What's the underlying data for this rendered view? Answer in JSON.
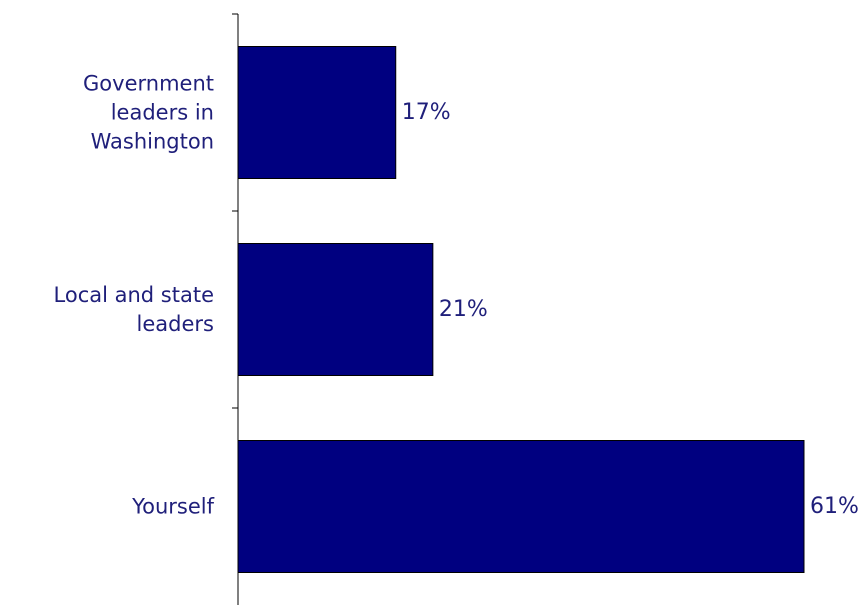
{
  "chart_data": {
    "type": "bar",
    "orientation": "horizontal",
    "categories": [
      [
        "Government",
        "leaders in",
        "Washington"
      ],
      [
        "Local and state",
        "leaders"
      ],
      [
        "Yourself"
      ]
    ],
    "values": [
      17,
      21,
      61
    ],
    "value_labels": [
      "17%",
      "21%",
      "61%"
    ],
    "xlim": [
      0,
      61
    ],
    "grid": false,
    "legend": "none",
    "bar_color": "#000080",
    "text_color": "#1f1f7a"
  }
}
